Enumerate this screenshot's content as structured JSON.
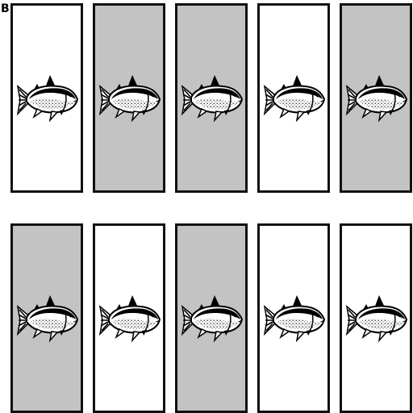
{
  "panel_label": "B",
  "colors": {
    "shaded": "#c3c3c3",
    "white": "#ffffff",
    "border": "#111111"
  },
  "icon": "fish-icon",
  "rows": [
    [
      "white",
      "shaded",
      "shaded",
      "white",
      "shaded"
    ],
    [
      "shaded",
      "white",
      "shaded",
      "white",
      "white"
    ]
  ]
}
